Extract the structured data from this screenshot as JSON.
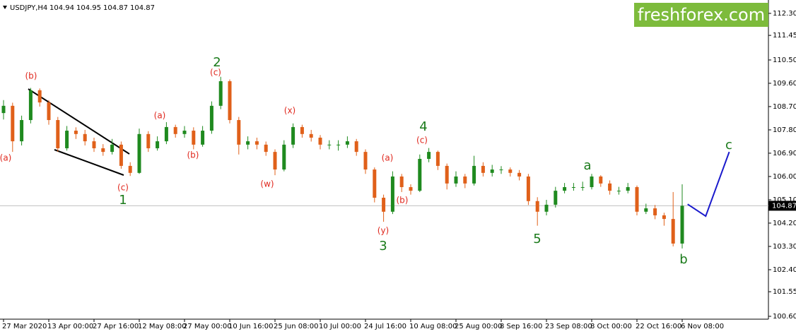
{
  "header": {
    "symbol": "USDJPY,H4",
    "ohlc": [
      104.94,
      104.95,
      104.87,
      104.87
    ]
  },
  "logo": "freshforex.com",
  "chart_data": {
    "type": "candlestick",
    "categories": [
      "27 Mar 2020",
      null,
      null,
      null,
      null,
      "13 Apr 00:00",
      null,
      null,
      null,
      null,
      "27 Apr 16:00",
      null,
      null,
      null,
      null,
      "12 May 08:00",
      null,
      null,
      null,
      null,
      "27 May 00:00",
      null,
      null,
      null,
      null,
      "10 Jun 16:00",
      null,
      null,
      null,
      null,
      "25 Jun 08:00",
      null,
      null,
      null,
      null,
      "10 Jul 00:00",
      null,
      null,
      null,
      null,
      "24 Jul 16:00",
      null,
      null,
      null,
      null,
      "10 Aug 08:00",
      null,
      null,
      null,
      null,
      "25 Aug 00:00",
      null,
      null,
      null,
      null,
      "8 Sep 16:00",
      null,
      null,
      null,
      null,
      "23 Sep 08:00",
      null,
      null,
      null,
      null,
      "8 Oct 00:00",
      null,
      null,
      null,
      null,
      "22 Oct 16:00",
      null,
      null,
      null,
      null,
      "6 Nov 08:00"
    ],
    "open": [
      108.45,
      108.73,
      107.36,
      108.18,
      109.33,
      108.86,
      108.18,
      107.09,
      107.77,
      107.64,
      107.36,
      107.09,
      106.95,
      107.23,
      106.41,
      106.14,
      107.64,
      107.09,
      107.36,
      107.91,
      107.64,
      107.77,
      107.23,
      107.77,
      108.73,
      109.68,
      108.18,
      107.23,
      107.36,
      107.23,
      106.95,
      106.27,
      107.23,
      107.91,
      107.64,
      107.5,
      107.23,
      107.23,
      107.23,
      107.36,
      106.95,
      106.27,
      105.18,
      104.64,
      106.0,
      105.59,
      105.45,
      106.68,
      106.95,
      106.41,
      105.73,
      106.0,
      105.73,
      106.41,
      106.14,
      106.27,
      106.27,
      106.14,
      106.0,
      105.05,
      104.64,
      104.91,
      105.45,
      105.59,
      105.59,
      105.59,
      106.0,
      105.73,
      105.45,
      105.45,
      105.59,
      104.64,
      104.77,
      104.5,
      104.36,
      103.41
    ],
    "high": [
      108.95,
      108.85,
      108.35,
      109.42,
      109.4,
      108.95,
      108.3,
      107.95,
      107.9,
      107.8,
      107.5,
      107.25,
      107.45,
      107.35,
      106.55,
      107.85,
      107.75,
      107.55,
      108.1,
      108.0,
      107.95,
      107.9,
      107.95,
      108.9,
      109.85,
      109.75,
      108.3,
      107.55,
      107.5,
      107.35,
      107.05,
      107.4,
      108.05,
      108.0,
      107.8,
      107.6,
      107.4,
      107.4,
      107.55,
      107.45,
      107.05,
      106.35,
      105.3,
      106.2,
      106.1,
      105.7,
      106.85,
      107.1,
      107.0,
      106.5,
      106.2,
      106.1,
      106.8,
      106.55,
      106.45,
      106.4,
      106.35,
      106.25,
      106.1,
      105.2,
      105.1,
      105.6,
      105.75,
      105.75,
      105.8,
      106.1,
      106.05,
      105.85,
      105.6,
      105.75,
      105.65,
      104.95,
      104.9,
      104.6,
      105.4,
      105.7
    ],
    "low": [
      108.2,
      106.95,
      107.2,
      108.05,
      108.7,
      108.0,
      106.95,
      107.0,
      107.45,
      107.2,
      106.95,
      106.8,
      106.85,
      106.3,
      106.02,
      106.1,
      106.95,
      107.0,
      107.25,
      107.5,
      107.5,
      107.05,
      107.15,
      107.65,
      108.6,
      108.05,
      106.85,
      107.05,
      107.05,
      106.8,
      106.05,
      106.2,
      107.1,
      107.5,
      107.35,
      107.05,
      107.05,
      107.0,
      107.1,
      106.8,
      106.1,
      105.0,
      104.25,
      104.55,
      105.4,
      105.3,
      105.4,
      106.55,
      106.25,
      105.5,
      105.6,
      105.55,
      105.65,
      106.0,
      106.0,
      106.1,
      106.0,
      105.85,
      104.9,
      104.1,
      104.5,
      104.8,
      105.35,
      105.45,
      105.45,
      105.5,
      105.6,
      105.3,
      105.3,
      105.35,
      104.5,
      104.55,
      104.35,
      104.1,
      103.3,
      103.22
    ],
    "close": [
      108.73,
      107.36,
      108.18,
      109.33,
      108.86,
      108.18,
      107.09,
      107.77,
      107.64,
      107.36,
      107.09,
      106.95,
      107.23,
      106.41,
      106.14,
      107.64,
      107.09,
      107.36,
      107.91,
      107.64,
      107.77,
      107.23,
      107.77,
      108.73,
      109.68,
      108.18,
      107.23,
      107.36,
      107.23,
      106.95,
      106.27,
      107.23,
      107.91,
      107.64,
      107.5,
      107.23,
      107.23,
      107.23,
      107.36,
      106.95,
      106.27,
      105.18,
      104.64,
      106.0,
      105.59,
      105.45,
      106.68,
      106.95,
      106.41,
      105.73,
      106.0,
      105.73,
      106.41,
      106.14,
      106.27,
      106.27,
      106.14,
      106.0,
      105.05,
      104.64,
      104.91,
      105.45,
      105.59,
      105.59,
      105.59,
      106.0,
      105.73,
      105.45,
      105.45,
      105.59,
      104.64,
      104.77,
      104.5,
      104.36,
      103.41,
      104.87
    ],
    "up_color": "#1f8a1f",
    "down_color": "#e0601a",
    "ylim": [
      100.49,
      112.68
    ],
    "yticks": [
      {
        "value": 112.3,
        "label": "112.30"
      },
      {
        "value": 111.45,
        "label": "111.45"
      },
      {
        "value": 110.5,
        "label": "110.50"
      },
      {
        "value": 109.6,
        "label": "109.60"
      },
      {
        "value": 108.7,
        "label": "108.70"
      },
      {
        "value": 107.8,
        "label": "107.80"
      },
      {
        "value": 106.9,
        "label": "106.90"
      },
      {
        "value": 106,
        "label": "106.00"
      },
      {
        "value": 105.1,
        "label": "105.10"
      },
      {
        "value": 104.2,
        "label": "104.20"
      },
      {
        "value": 103.3,
        "label": "103.30"
      },
      {
        "value": 102.4,
        "label": "102.40"
      },
      {
        "value": 101.55,
        "label": "101.55"
      },
      {
        "value": 100.6,
        "label": "100.60"
      }
    ],
    "current_price": 104.87,
    "projection": {
      "color": "#1a1acc",
      "x": [
        75.6,
        77.6,
        80.2
      ],
      "values": [
        104.93,
        104.47,
        106.95
      ]
    },
    "annotations": [
      {
        "text": "(a)",
        "color": "#e0281e"
      },
      {
        "text": "(b)",
        "color": "#e0281e"
      },
      {
        "text": "(c)",
        "color": "#e0281e"
      },
      {
        "text": "1",
        "color": "#1a7a1a"
      },
      {
        "text": "(a)",
        "color": "#e0281e"
      },
      {
        "text": "(b)",
        "color": "#e0281e"
      },
      {
        "text": "(c)",
        "color": "#e0281e"
      },
      {
        "text": "2",
        "color": "#1a7a1a"
      },
      {
        "text": "(w)",
        "color": "#e0281e"
      },
      {
        "text": "(x)",
        "color": "#e0281e"
      },
      {
        "text": "(a)",
        "color": "#e0281e"
      },
      {
        "text": "(y)",
        "color": "#e0281e"
      },
      {
        "text": "3",
        "color": "#1a7a1a"
      },
      {
        "text": "(b)",
        "color": "#e0281e"
      },
      {
        "text": "(c)",
        "color": "#e0281e"
      },
      {
        "text": "4",
        "color": "#1a7a1a"
      },
      {
        "text": "5",
        "color": "#1a7a1a"
      },
      {
        "text": "a",
        "color": "#1a7a1a"
      },
      {
        "text": "b",
        "color": "#1a7a1a"
      },
      {
        "text": "c",
        "color": "#1a7a1a"
      }
    ]
  }
}
